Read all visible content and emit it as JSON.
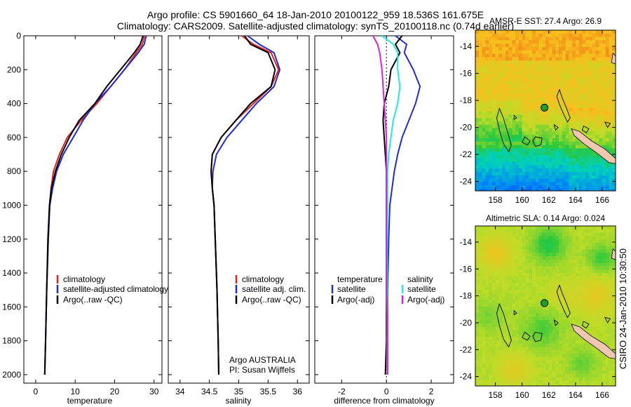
{
  "header": {
    "line1": "Argo profile: CS 5901660_64 18-Jan-2010 20100122_959 18.536S 161.675E",
    "line2": "Climatology: CARS2009. Satellite-adjusted climatology: synTS_20100118.nc (0.74d earlier)"
  },
  "side_label": "CSIRO 24-Jan-2010 10:30:50",
  "colors": {
    "climatology": "#e8201c",
    "satellite": "#1c2ae0",
    "argo": "#000000",
    "salinity_sat": "#22e8e8",
    "salinity_argo": "#e020e0",
    "land": "#f0c8b0"
  },
  "chart_data": [
    {
      "type": "line",
      "id": "temp",
      "xlabel": "temperature",
      "ylabel": "",
      "xlim": [
        -3,
        32
      ],
      "ylim": [
        2050,
        0
      ],
      "xticks": [
        "0",
        "10",
        "20",
        "30"
      ],
      "yticks": [
        "0",
        "200",
        "400",
        "600",
        "800",
        "1000",
        "1200",
        "1400",
        "1600",
        "1800",
        "2000"
      ],
      "legend": [
        "climatology",
        "satellite-adjusted climatology",
        "Argo(..raw -QC)"
      ],
      "series": [
        {
          "name": "climatology",
          "color": "#e8201c",
          "x": [
            27.6,
            27.0,
            25.5,
            22.5,
            19.0,
            15.5,
            11.5,
            8.0,
            6.0,
            4.5,
            3.9,
            3.5,
            3.2,
            2.8,
            2.5,
            2.3
          ],
          "y": [
            0,
            50,
            100,
            200,
            300,
            400,
            500,
            600,
            700,
            800,
            900,
            1000,
            1200,
            1500,
            1800,
            2000
          ]
        },
        {
          "name": "satellite",
          "color": "#1c2ae0",
          "x": [
            28.0,
            27.5,
            26.0,
            22.5,
            19.0,
            15.0,
            12.0,
            9.5,
            7.0,
            5.3,
            4.3,
            3.6,
            3.2,
            2.8,
            2.5,
            2.3
          ],
          "y": [
            0,
            50,
            100,
            200,
            300,
            400,
            500,
            600,
            700,
            800,
            900,
            1000,
            1200,
            1500,
            1800,
            2000
          ]
        },
        {
          "name": "argo",
          "color": "#000000",
          "x": [
            27.2,
            26.5,
            25.0,
            21.5,
            18.0,
            15.0,
            11.0,
            8.5,
            6.5,
            5.0,
            4.0,
            3.5,
            3.1,
            2.8,
            2.5,
            2.3
          ],
          "y": [
            0,
            50,
            100,
            200,
            300,
            400,
            500,
            600,
            700,
            800,
            900,
            1000,
            1200,
            1500,
            1800,
            2000
          ]
        }
      ]
    },
    {
      "type": "line",
      "id": "sal",
      "xlabel": "salinity",
      "xlim": [
        33.8,
        36.2
      ],
      "ylim": [
        2050,
        0
      ],
      "xticks": [
        "34",
        "34.5",
        "35",
        "35.5",
        "36"
      ],
      "legend": [
        "climatology",
        "satellite adj. clim.",
        "Argo(..raw -QC)"
      ],
      "annotation": [
        "Argo AUSTRALIA",
        "PI: Susan Wijffels"
      ],
      "series": [
        {
          "name": "climatology",
          "color": "#e8201c",
          "x": [
            35.05,
            35.25,
            35.55,
            35.68,
            35.55,
            35.25,
            34.95,
            34.7,
            34.55,
            34.53,
            34.55,
            34.58,
            34.6,
            34.63,
            34.65,
            34.66
          ],
          "y": [
            0,
            50,
            100,
            200,
            300,
            400,
            500,
            600,
            700,
            800,
            900,
            1000,
            1200,
            1500,
            1800,
            2000
          ]
        },
        {
          "name": "satellite",
          "color": "#1c2ae0",
          "x": [
            35.15,
            35.35,
            35.6,
            35.7,
            35.6,
            35.3,
            35.05,
            34.8,
            34.62,
            34.56,
            34.55,
            34.58,
            34.6,
            34.63,
            34.65,
            34.66
          ],
          "y": [
            0,
            50,
            100,
            200,
            300,
            400,
            500,
            600,
            700,
            800,
            900,
            1000,
            1200,
            1500,
            1800,
            2000
          ]
        },
        {
          "name": "argo",
          "color": "#000000",
          "x": [
            35.1,
            35.2,
            35.5,
            35.62,
            35.55,
            35.2,
            34.95,
            34.7,
            34.55,
            34.53,
            34.55,
            34.58,
            34.6,
            34.63,
            34.65,
            34.66
          ],
          "y": [
            0,
            50,
            100,
            200,
            300,
            400,
            500,
            600,
            700,
            800,
            900,
            1000,
            1200,
            1500,
            1800,
            2000
          ]
        }
      ]
    },
    {
      "type": "line",
      "id": "diff",
      "xlabel": "difference from climatology",
      "xlim": [
        -3.2,
        3.0
      ],
      "ylim": [
        2050,
        0
      ],
      "xticks": [
        "-2",
        "0",
        "2"
      ],
      "legend_left": [
        "temperature",
        "satellite",
        "Argo(-adj)"
      ],
      "legend_right": [
        "salinity",
        "satellite",
        "Argo(-adj)"
      ],
      "series": [
        {
          "name": "temp satellite",
          "color": "#1c2ae0",
          "x": [
            0.4,
            0.9,
            0.8,
            1.2,
            1.5,
            1.3,
            1.0,
            0.7,
            0.5,
            0.35,
            0.25,
            0.15,
            0.1,
            0.05,
            0.05,
            0.05
          ],
          "y": [
            0,
            50,
            100,
            200,
            300,
            400,
            500,
            600,
            700,
            800,
            900,
            1000,
            1200,
            1500,
            1800,
            2000
          ]
        },
        {
          "name": "temp argo",
          "color": "#000000",
          "x": [
            0.7,
            0.4,
            0.6,
            0.2,
            0.1,
            -0.1,
            -0.15,
            -0.1,
            -0.05,
            0.0,
            0.0,
            0.0,
            0.0,
            0.0,
            0.0,
            -0.05
          ],
          "y": [
            0,
            50,
            100,
            200,
            300,
            400,
            500,
            600,
            700,
            800,
            900,
            1000,
            1200,
            1500,
            1800,
            2000
          ]
        },
        {
          "name": "sal satellite",
          "color": "#22e8e8",
          "x": [
            -0.2,
            0.3,
            0.5,
            0.5,
            0.6,
            0.5,
            0.3,
            0.2,
            0.1,
            0.05,
            0.05,
            0.05,
            0.03,
            0.03,
            0.03,
            0.03
          ],
          "y": [
            0,
            50,
            100,
            200,
            300,
            400,
            500,
            600,
            700,
            800,
            900,
            1000,
            1200,
            1500,
            1800,
            2000
          ]
        },
        {
          "name": "sal argo",
          "color": "#e020e0",
          "x": [
            -0.6,
            -0.4,
            -0.3,
            -0.2,
            -0.15,
            -0.1,
            -0.05,
            0.0,
            0.0,
            0.0,
            0.0,
            0.0,
            0.0,
            0.0,
            0.05,
            0.05
          ],
          "y": [
            0,
            50,
            100,
            200,
            300,
            400,
            500,
            600,
            700,
            800,
            900,
            1000,
            1200,
            1500,
            1800,
            2000
          ]
        }
      ]
    },
    {
      "type": "heatmap",
      "id": "sst",
      "title": "AMSR-E SST: 27.4 Argo: 26.9",
      "xlim": [
        156.5,
        167
      ],
      "ylim": [
        -24.7,
        -12.8
      ],
      "xticks": [
        "158",
        "160",
        "162",
        "164",
        "166"
      ],
      "yticks": [
        "-14",
        "-16",
        "-18",
        "-20",
        "-22",
        "-24"
      ],
      "marker": {
        "lon": 161.675,
        "lat": -18.536
      }
    },
    {
      "type": "heatmap",
      "id": "sla",
      "title": "Altimetric SLA: 0.14 Argo: 0.024",
      "xlim": [
        156.5,
        167
      ],
      "ylim": [
        -24.7,
        -12.8
      ],
      "xticks": [
        "158",
        "160",
        "162",
        "164",
        "166"
      ],
      "yticks": [
        "-14",
        "-16",
        "-18",
        "-20",
        "-22",
        "-24"
      ],
      "marker": {
        "lon": 161.675,
        "lat": -18.536
      }
    }
  ]
}
